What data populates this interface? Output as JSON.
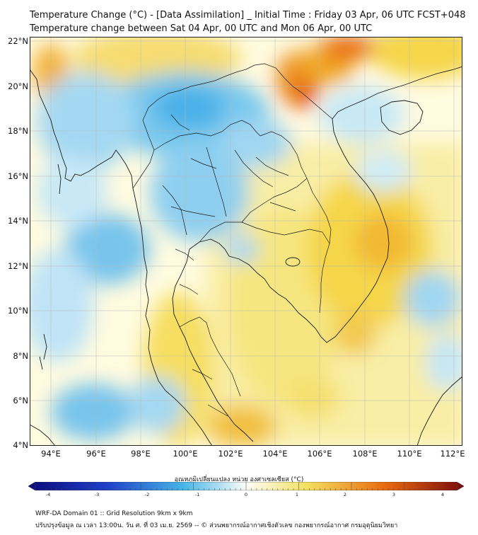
{
  "title": {
    "line1": "Temperature Change (°C) - [Data Assimilation] _ Initial Time : Friday 03 Apr, 06 UTC FCST+048",
    "line2": "Temperature change between Sat 04 Apr, 00 UTC and Mon 06 Apr, 00 UTC"
  },
  "map": {
    "lat_labels": [
      "22°N",
      "20°N",
      "18°N",
      "16°N",
      "14°N",
      "12°N",
      "10°N",
      "8°N",
      "6°N",
      "4°N"
    ],
    "lon_labels": [
      "94°E",
      "96°E",
      "98°E",
      "100°E",
      "102°E",
      "104°E",
      "106°E",
      "108°E",
      "110°E",
      "112°E"
    ],
    "lat_range": [
      4,
      22.2
    ],
    "lon_range": [
      93.1,
      112.4
    ],
    "field_description": "Temperature change (°C) over Southeast Asia"
  },
  "colorbar": {
    "title": "อุณหภูมิเปลี่ยนแปลง หน่วย องศาเซลเซียส (°C)",
    "ticks": [
      "-4",
      "-3",
      "-2",
      "-1",
      "0",
      "1",
      "2",
      "3",
      "4"
    ],
    "min": -4,
    "max": 4,
    "colors": {
      "min": "#0a0a7a",
      "cold": "#2040c8",
      "cool": "#4ab8e8",
      "neutral": "#fdfdf8",
      "warm": "#f3e060",
      "hot": "#e86a10",
      "max": "#7a0a0a"
    }
  },
  "footer": {
    "line1": "WRF-DA Domain 01 :: Grid Resolution 9km x 9km",
    "line2": "ปรับปรุงข้อมูล ณ เวลา 13:00น. วัน ศ. ที่ 03 เม.ย. 2569 -- © ส่วนพยากรณ์อากาศเชิงตัวเลข กองพยากรณ์อากาศ กรมอุตุนิยมวิทยา"
  }
}
